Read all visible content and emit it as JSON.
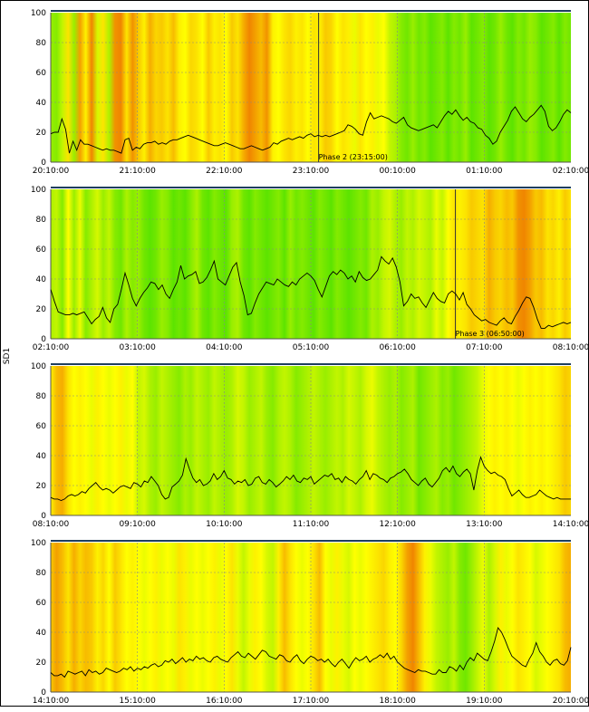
{
  "ylabel": "SD1",
  "colors": {
    "green": "#33dd00",
    "yellow": "#ffff00",
    "orange": "#ee7700",
    "grid": "#888888",
    "topline": "#1f3f5f",
    "trace": "#000000"
  },
  "chart_data": [
    {
      "type": "line",
      "ylim": [
        0,
        100
      ],
      "yticks": [
        "0",
        "20",
        "40",
        "60",
        "80",
        "100"
      ],
      "xticks": [
        "20:10:00",
        "21:10:00",
        "22:10:00",
        "23:10:00",
        "00:10:00",
        "01:10:00",
        "02:10:00"
      ],
      "marker": {
        "x": 0.515,
        "label": "Phase 2 (23:15:00)"
      },
      "stress": [
        0.25,
        0.2,
        0.35,
        0.6,
        0.25,
        0.85,
        0.55,
        0.95,
        0.4,
        0.6,
        0.3,
        0.9,
        0.95,
        0.6,
        0.9,
        0.7,
        0.55,
        0.8,
        0.65,
        0.7,
        0.6,
        0.75,
        0.55,
        0.5,
        0.65,
        0.6,
        0.5,
        0.7,
        0.55,
        0.6,
        0.5,
        0.7,
        0.6,
        0.8,
        0.95,
        0.85,
        0.75,
        0.9,
        0.55,
        0.5,
        0.6,
        0.65,
        0.55,
        0.6,
        0.5,
        0.6,
        0.55,
        0.7,
        0.65,
        0.5,
        0.6,
        0.55,
        0.45,
        0.6,
        0.5,
        0.55,
        0.45,
        0.5,
        0.35,
        0.3,
        0.2,
        0.15,
        0.25,
        0.15,
        0.2,
        0.1,
        0.15,
        0.2,
        0.1,
        0.2,
        0.15,
        0.25,
        0.1,
        0.15,
        0.2,
        0.1,
        0.15,
        0.25,
        0.15,
        0.1,
        0.2,
        0.15,
        0.25,
        0.2,
        0.1,
        0.15,
        0.2,
        0.1,
        0.2,
        0.15
      ],
      "values": [
        19,
        20,
        20,
        29,
        22,
        6,
        14,
        8,
        15,
        12,
        12,
        11,
        10,
        9,
        8,
        9,
        8,
        8,
        7,
        6,
        15,
        16,
        8,
        10,
        9,
        12,
        13,
        13,
        14,
        12,
        13,
        12,
        14,
        15,
        15,
        16,
        17,
        18,
        17,
        16,
        15,
        14,
        13,
        12,
        11,
        11,
        12,
        13,
        12,
        11,
        10,
        9,
        9,
        10,
        11,
        10,
        9,
        8,
        9,
        10,
        13,
        12,
        14,
        15,
        16,
        15,
        16,
        17,
        16,
        18,
        19,
        17,
        18,
        17,
        18,
        17,
        18,
        19,
        20,
        21,
        25,
        24,
        22,
        19,
        18,
        27,
        33,
        29,
        30,
        31,
        30,
        29,
        27,
        26,
        28,
        30,
        25,
        23,
        22,
        21,
        22,
        23,
        24,
        25,
        23,
        27,
        31,
        34,
        32,
        35,
        31,
        28,
        30,
        27,
        26,
        23,
        22,
        18,
        16,
        12,
        14,
        20,
        24,
        28,
        34,
        37,
        33,
        29,
        27,
        30,
        32,
        35,
        38,
        34,
        24,
        21,
        23,
        27,
        32,
        35,
        33
      ]
    },
    {
      "type": "line",
      "ylim": [
        0,
        100
      ],
      "yticks": [
        "0",
        "20",
        "40",
        "60",
        "80",
        "100"
      ],
      "xticks": [
        "02:10:00",
        "03:10:00",
        "04:10:00",
        "05:10:00",
        "06:10:00",
        "07:10:00",
        "08:10:00"
      ],
      "marker": {
        "x": 0.778,
        "label": "Phase 3 (06:50:00)"
      },
      "stress": [
        0.3,
        0.35,
        0.2,
        0.5,
        0.25,
        0.45,
        0.2,
        0.3,
        0.4,
        0.25,
        0.35,
        0.2,
        0.15,
        0.3,
        0.2,
        0.25,
        0.15,
        0.1,
        0.15,
        0.25,
        0.2,
        0.1,
        0.15,
        0.1,
        0.2,
        0.3,
        0.15,
        0.1,
        0.2,
        0.15,
        0.1,
        0.25,
        0.3,
        0.15,
        0.1,
        0.2,
        0.15,
        0.1,
        0.15,
        0.2,
        0.1,
        0.25,
        0.15,
        0.2,
        0.15,
        0.1,
        0.2,
        0.15,
        0.1,
        0.2,
        0.15,
        0.1,
        0.15,
        0.2,
        0.15,
        0.3,
        0.25,
        0.35,
        0.4,
        0.3,
        0.25,
        0.35,
        0.3,
        0.4,
        0.35,
        0.3,
        0.45,
        0.35,
        0.5,
        0.6,
        0.55,
        0.6,
        0.7,
        0.65,
        0.6,
        0.8,
        0.7,
        0.65,
        0.75,
        0.7,
        0.9,
        0.95,
        0.85,
        0.7,
        0.75,
        0.6,
        0.65,
        0.55,
        0.7,
        0.6
      ],
      "values": [
        33,
        25,
        18,
        17,
        16,
        16,
        17,
        16,
        17,
        18,
        14,
        10,
        13,
        15,
        21,
        14,
        11,
        20,
        23,
        33,
        44,
        36,
        27,
        22,
        27,
        31,
        34,
        38,
        37,
        33,
        36,
        30,
        27,
        33,
        38,
        49,
        40,
        42,
        43,
        45,
        37,
        38,
        41,
        46,
        52,
        40,
        38,
        36,
        42,
        48,
        51,
        38,
        29,
        16,
        17,
        24,
        30,
        34,
        38,
        37,
        36,
        40,
        38,
        36,
        35,
        38,
        36,
        40,
        42,
        44,
        42,
        39,
        33,
        28,
        35,
        42,
        45,
        43,
        46,
        44,
        40,
        42,
        38,
        45,
        41,
        39,
        40,
        43,
        46,
        55,
        52,
        50,
        54,
        48,
        38,
        22,
        25,
        30,
        27,
        28,
        24,
        21,
        26,
        31,
        27,
        25,
        24,
        30,
        32,
        30,
        26,
        31,
        23,
        20,
        16,
        14,
        12,
        13,
        11,
        10,
        9,
        12,
        14,
        11,
        10,
        15,
        19,
        24,
        28,
        27,
        21,
        13,
        7,
        7,
        9,
        8,
        9,
        10,
        11,
        10,
        11
      ]
    },
    {
      "type": "line",
      "ylim": [
        0,
        100
      ],
      "yticks": [
        "0",
        "20",
        "40",
        "60",
        "80",
        "100"
      ],
      "xticks": [
        "08:10:00",
        "09:10:00",
        "10:10:00",
        "11:10:00",
        "12:10:00",
        "13:10:00",
        "14:10:00"
      ],
      "marker": null,
      "stress": [
        0.55,
        0.75,
        0.8,
        0.6,
        0.5,
        0.55,
        0.5,
        0.45,
        0.55,
        0.5,
        0.45,
        0.5,
        0.55,
        0.45,
        0.5,
        0.35,
        0.4,
        0.3,
        0.25,
        0.35,
        0.3,
        0.25,
        0.2,
        0.3,
        0.25,
        0.35,
        0.3,
        0.25,
        0.35,
        0.3,
        0.25,
        0.3,
        0.4,
        0.35,
        0.25,
        0.3,
        0.35,
        0.25,
        0.2,
        0.3,
        0.35,
        0.3,
        0.2,
        0.25,
        0.3,
        0.35,
        0.3,
        0.25,
        0.3,
        0.35,
        0.3,
        0.4,
        0.35,
        0.3,
        0.4,
        0.45,
        0.35,
        0.3,
        0.25,
        0.3,
        0.2,
        0.25,
        0.3,
        0.15,
        0.2,
        0.25,
        0.3,
        0.2,
        0.25,
        0.15,
        0.2,
        0.25,
        0.3,
        0.35,
        0.45,
        0.5,
        0.55,
        0.5,
        0.55,
        0.5,
        0.45,
        0.5,
        0.55,
        0.5,
        0.55,
        0.5,
        0.55,
        0.6,
        0.7,
        0.65
      ],
      "values": [
        12,
        11,
        11,
        10,
        11,
        13,
        14,
        13,
        14,
        16,
        15,
        18,
        20,
        22,
        19,
        17,
        18,
        17,
        15,
        17,
        19,
        20,
        19,
        18,
        22,
        21,
        19,
        23,
        22,
        26,
        23,
        20,
        14,
        11,
        12,
        19,
        21,
        23,
        27,
        38,
        31,
        25,
        22,
        24,
        20,
        21,
        23,
        28,
        24,
        26,
        30,
        25,
        24,
        21,
        23,
        22,
        24,
        20,
        21,
        25,
        26,
        22,
        21,
        24,
        22,
        19,
        21,
        23,
        26,
        24,
        27,
        23,
        22,
        25,
        24,
        26,
        21,
        23,
        25,
        27,
        26,
        28,
        24,
        25,
        22,
        26,
        24,
        23,
        21,
        24,
        26,
        30,
        24,
        28,
        27,
        25,
        24,
        22,
        25,
        26,
        28,
        29,
        31,
        28,
        24,
        22,
        20,
        23,
        25,
        21,
        19,
        22,
        25,
        30,
        32,
        29,
        33,
        28,
        26,
        29,
        31,
        28,
        17,
        30,
        39,
        33,
        30,
        28,
        29,
        27,
        26,
        24,
        18,
        13,
        15,
        17,
        14,
        12,
        12,
        13,
        14,
        17,
        15,
        13,
        12,
        11,
        12,
        11,
        11,
        11,
        11
      ]
    },
    {
      "type": "line",
      "ylim": [
        0,
        100
      ],
      "yticks": [
        "0",
        "20",
        "40",
        "60",
        "80",
        "100"
      ],
      "xticks": [
        "14:10:00",
        "15:10:00",
        "16:10:00",
        "17:10:00",
        "18:10:00",
        "19:10:00",
        "20:10:00"
      ],
      "marker": null,
      "stress": [
        0.7,
        0.85,
        0.75,
        0.6,
        0.8,
        0.65,
        0.75,
        0.7,
        0.55,
        0.65,
        0.5,
        0.7,
        0.6,
        0.5,
        0.55,
        0.5,
        0.45,
        0.5,
        0.55,
        0.45,
        0.5,
        0.45,
        0.6,
        0.55,
        0.45,
        0.5,
        0.45,
        0.5,
        0.55,
        0.45,
        0.5,
        0.6,
        0.45,
        0.35,
        0.45,
        0.55,
        0.5,
        0.4,
        0.35,
        0.55,
        0.75,
        0.6,
        0.5,
        0.45,
        0.5,
        0.6,
        0.75,
        0.5,
        0.45,
        0.55,
        0.45,
        0.4,
        0.5,
        0.45,
        0.5,
        0.55,
        0.6,
        0.65,
        0.55,
        0.5,
        0.65,
        0.85,
        0.95,
        0.75,
        0.55,
        0.45,
        0.35,
        0.3,
        0.25,
        0.35,
        0.2,
        0.15,
        0.25,
        0.35,
        0.45,
        0.3,
        0.4,
        0.55,
        0.45,
        0.5,
        0.6,
        0.55,
        0.5,
        0.4,
        0.45,
        0.5,
        0.55,
        0.6,
        0.75,
        0.8
      ],
      "values": [
        13,
        11,
        11,
        12,
        10,
        14,
        13,
        12,
        13,
        14,
        11,
        15,
        13,
        14,
        12,
        13,
        16,
        15,
        14,
        13,
        14,
        16,
        15,
        17,
        14,
        16,
        15,
        17,
        16,
        18,
        19,
        17,
        18,
        21,
        20,
        22,
        19,
        21,
        23,
        20,
        22,
        21,
        24,
        22,
        23,
        21,
        20,
        23,
        24,
        22,
        21,
        20,
        23,
        25,
        27,
        24,
        23,
        26,
        24,
        22,
        25,
        28,
        27,
        24,
        23,
        22,
        25,
        24,
        21,
        20,
        23,
        25,
        21,
        19,
        22,
        24,
        23,
        21,
        22,
        20,
        22,
        19,
        17,
        20,
        22,
        19,
        16,
        20,
        23,
        21,
        22,
        24,
        20,
        22,
        23,
        25,
        23,
        26,
        22,
        24,
        20,
        18,
        16,
        15,
        14,
        13,
        15,
        14,
        14,
        13,
        12,
        12,
        15,
        13,
        13,
        17,
        16,
        14,
        18,
        15,
        20,
        23,
        21,
        26,
        24,
        22,
        21,
        27,
        34,
        43,
        40,
        35,
        29,
        24,
        22,
        20,
        18,
        17,
        22,
        26,
        33,
        27,
        24,
        20,
        18,
        21,
        22,
        19,
        18,
        21,
        30
      ]
    }
  ]
}
